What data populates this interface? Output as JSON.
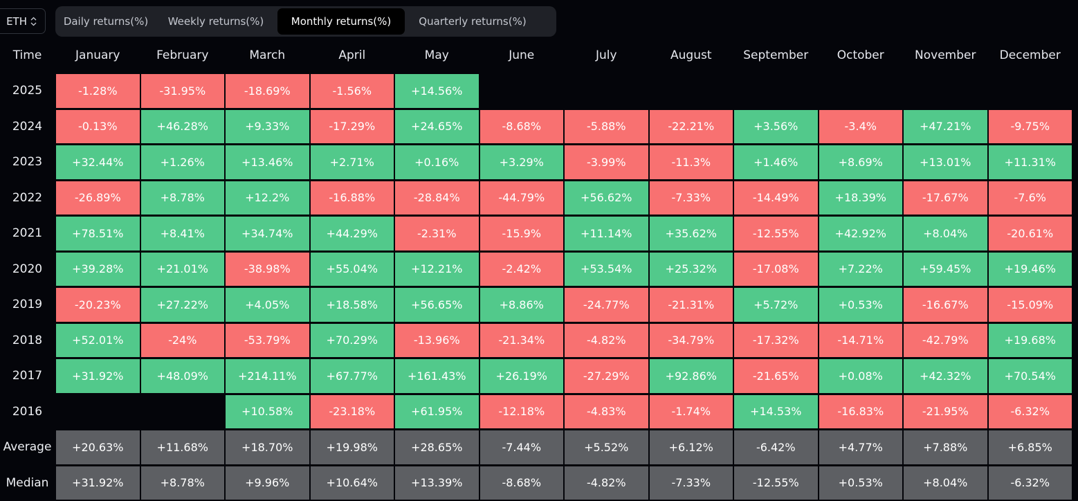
{
  "asset_selector": {
    "value": "ETH",
    "icon": "chevron-up-down-icon"
  },
  "tabs": [
    {
      "label": "Daily returns(%)",
      "active": false
    },
    {
      "label": "Weekly returns(%)",
      "active": false
    },
    {
      "label": "Monthly returns(%)",
      "active": true
    },
    {
      "label": "Quarterly returns(%)",
      "active": false
    }
  ],
  "colors": {
    "positive": "#52c98b",
    "negative": "#f87171",
    "stat": "#5d5f63",
    "background": "#04050a"
  },
  "chart_data": {
    "type": "heatmap",
    "title": "ETH Monthly returns(%)",
    "row_header": "Time",
    "columns": [
      "January",
      "February",
      "March",
      "April",
      "May",
      "June",
      "July",
      "August",
      "September",
      "October",
      "November",
      "December"
    ],
    "rows": [
      {
        "label": "2025",
        "values": [
          "-1.28%",
          "-31.95%",
          "-18.69%",
          "-1.56%",
          "+14.56%",
          null,
          null,
          null,
          null,
          null,
          null,
          null
        ]
      },
      {
        "label": "2024",
        "values": [
          "-0.13%",
          "+46.28%",
          "+9.33%",
          "-17.29%",
          "+24.65%",
          "-8.68%",
          "-5.88%",
          "-22.21%",
          "+3.56%",
          "-3.4%",
          "+47.21%",
          "-9.75%"
        ]
      },
      {
        "label": "2023",
        "values": [
          "+32.44%",
          "+1.26%",
          "+13.46%",
          "+2.71%",
          "+0.16%",
          "+3.29%",
          "-3.99%",
          "-11.3%",
          "+1.46%",
          "+8.69%",
          "+13.01%",
          "+11.31%"
        ]
      },
      {
        "label": "2022",
        "values": [
          "-26.89%",
          "+8.78%",
          "+12.2%",
          "-16.88%",
          "-28.84%",
          "-44.79%",
          "+56.62%",
          "-7.33%",
          "-14.49%",
          "+18.39%",
          "-17.67%",
          "-7.6%"
        ]
      },
      {
        "label": "2021",
        "values": [
          "+78.51%",
          "+8.41%",
          "+34.74%",
          "+44.29%",
          "-2.31%",
          "-15.9%",
          "+11.14%",
          "+35.62%",
          "-12.55%",
          "+42.92%",
          "+8.04%",
          "-20.61%"
        ]
      },
      {
        "label": "2020",
        "values": [
          "+39.28%",
          "+21.01%",
          "-38.98%",
          "+55.04%",
          "+12.21%",
          "-2.42%",
          "+53.54%",
          "+25.32%",
          "-17.08%",
          "+7.22%",
          "+59.45%",
          "+19.46%"
        ]
      },
      {
        "label": "2019",
        "values": [
          "-20.23%",
          "+27.22%",
          "+4.05%",
          "+18.58%",
          "+56.65%",
          "+8.86%",
          "-24.77%",
          "-21.31%",
          "+5.72%",
          "+0.53%",
          "-16.67%",
          "-15.09%"
        ]
      },
      {
        "label": "2018",
        "values": [
          "+52.01%",
          "-24%",
          "-53.79%",
          "+70.29%",
          "-13.96%",
          "-21.34%",
          "-4.82%",
          "-34.79%",
          "-17.32%",
          "-14.71%",
          "-42.79%",
          "+19.68%"
        ]
      },
      {
        "label": "2017",
        "values": [
          "+31.92%",
          "+48.09%",
          "+214.11%",
          "+67.77%",
          "+161.43%",
          "+26.19%",
          "-27.29%",
          "+92.86%",
          "-21.65%",
          "+0.08%",
          "+42.32%",
          "+70.54%"
        ]
      },
      {
        "label": "2016",
        "values": [
          null,
          null,
          "+10.58%",
          "-23.18%",
          "+61.95%",
          "-12.18%",
          "-4.83%",
          "-1.74%",
          "+14.53%",
          "-16.83%",
          "-21.95%",
          "-6.32%"
        ]
      }
    ],
    "summary_rows": [
      {
        "label": "Average",
        "values": [
          "+20.63%",
          "+11.68%",
          "+18.70%",
          "+19.98%",
          "+28.65%",
          "-7.44%",
          "+5.52%",
          "+6.12%",
          "-6.42%",
          "+4.77%",
          "+7.88%",
          "+6.85%"
        ]
      },
      {
        "label": "Median",
        "values": [
          "+31.92%",
          "+8.78%",
          "+9.96%",
          "+10.64%",
          "+13.39%",
          "-8.68%",
          "-4.82%",
          "-7.33%",
          "-12.55%",
          "+0.53%",
          "+8.04%",
          "-6.32%"
        ]
      }
    ]
  }
}
